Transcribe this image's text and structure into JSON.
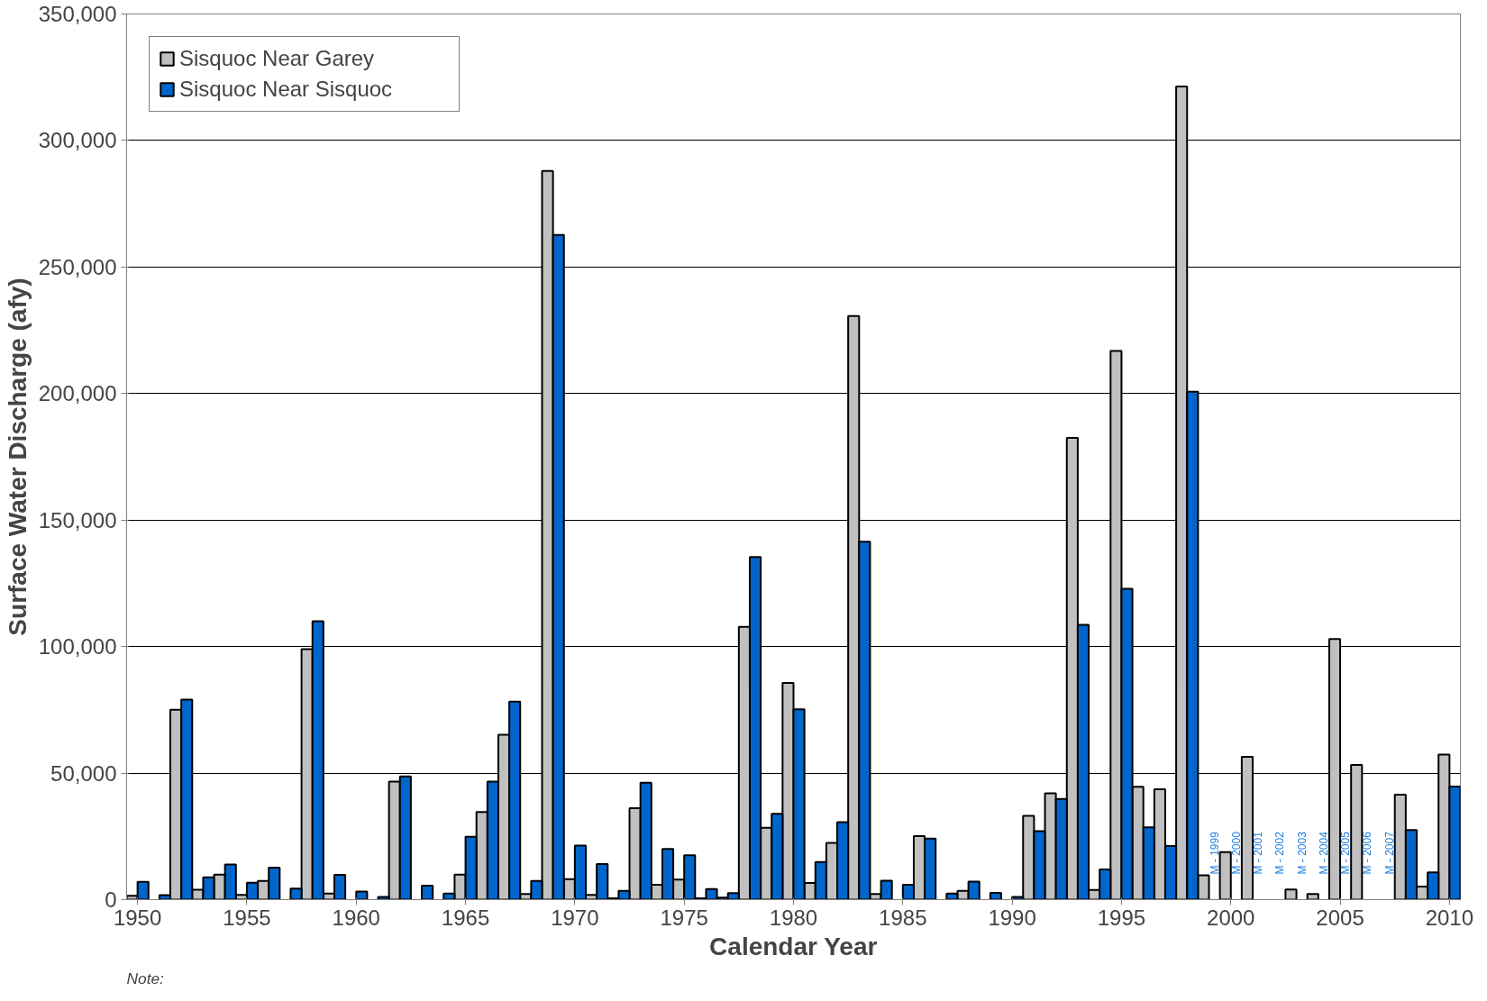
{
  "chart_data": {
    "type": "bar",
    "xlabel": "Calendar Year",
    "ylabel": "Surface Water Discharge (afy)",
    "x": [
      1950,
      1951,
      1952,
      1953,
      1954,
      1955,
      1956,
      1957,
      1958,
      1959,
      1960,
      1961,
      1962,
      1963,
      1964,
      1965,
      1966,
      1967,
      1968,
      1969,
      1970,
      1971,
      1972,
      1973,
      1974,
      1975,
      1976,
      1977,
      1978,
      1979,
      1980,
      1981,
      1982,
      1983,
      1984,
      1985,
      1986,
      1987,
      1988,
      1989,
      1990,
      1991,
      1992,
      1993,
      1994,
      1995,
      1996,
      1997,
      1998,
      1999,
      2000,
      2001,
      2002,
      2003,
      2004,
      2005,
      2006,
      2007,
      2008,
      2009,
      2010
    ],
    "series": [
      {
        "name": "Sisquoc Near Garey",
        "color": "#c0c0c0",
        "values": [
          1500,
          null,
          75000,
          3900,
          9900,
          1900,
          7400,
          null,
          99000,
          2400,
          null,
          null,
          46600,
          null,
          null,
          9900,
          34600,
          65200,
          2200,
          288000,
          8100,
          1900,
          500,
          36100,
          5900,
          7900,
          500,
          800,
          107800,
          28400,
          85600,
          6600,
          22400,
          230600,
          2200,
          null,
          25100,
          null,
          3500,
          null,
          null,
          33100,
          42000,
          182500,
          3800,
          216800,
          44600,
          43600,
          321300,
          9600,
          18800,
          56400,
          null,
          4000,
          2200,
          103000,
          53200,
          null,
          41500,
          5200,
          57300
        ]
      },
      {
        "name": "Sisquoc Near Sisquoc",
        "color": "#0066cc",
        "values": [
          7000,
          1800,
          79000,
          8800,
          13900,
          6700,
          12600,
          4400,
          110000,
          9800,
          3200,
          1100,
          48700,
          5500,
          2400,
          24800,
          46600,
          78200,
          7400,
          262700,
          21400,
          14100,
          3500,
          46200,
          20000,
          17500,
          4200,
          2600,
          135400,
          33900,
          75200,
          14900,
          30600,
          141400,
          7500,
          5900,
          24100,
          2400,
          7100,
          2700,
          1100,
          27100,
          39800,
          108600,
          11900,
          122800,
          28600,
          21200,
          200700,
          null,
          null,
          null,
          null,
          null,
          null,
          null,
          null,
          null,
          27500,
          10800,
          44700
        ]
      }
    ],
    "xlim": [
      1949.5,
      2010.5
    ],
    "xticks": [
      1950,
      1955,
      1960,
      1965,
      1970,
      1975,
      1980,
      1985,
      1990,
      1995,
      2000,
      2005,
      2010
    ],
    "ylim": [
      0,
      350000
    ],
    "yticks": [
      0,
      {
        "value": 50000,
        "label": "50,000"
      },
      {
        "value": 100000,
        "label": "100,000"
      },
      {
        "value": 150000,
        "label": "150,000"
      },
      {
        "value": 200000,
        "label": "200,000"
      },
      {
        "value": 250000,
        "label": "250,000"
      },
      {
        "value": 300000,
        "label": "300,000"
      },
      {
        "value": 350000,
        "label": "350,000"
      }
    ],
    "grid": "y",
    "legend": "top left",
    "annotations": [
      "M - 1999",
      "M - 2000",
      "M - 2001",
      "M - 2002",
      "M - 2003",
      "M - 2004",
      "M - 2005",
      "M - 2006",
      "M - 2007",
      "Note:"
    ]
  }
}
